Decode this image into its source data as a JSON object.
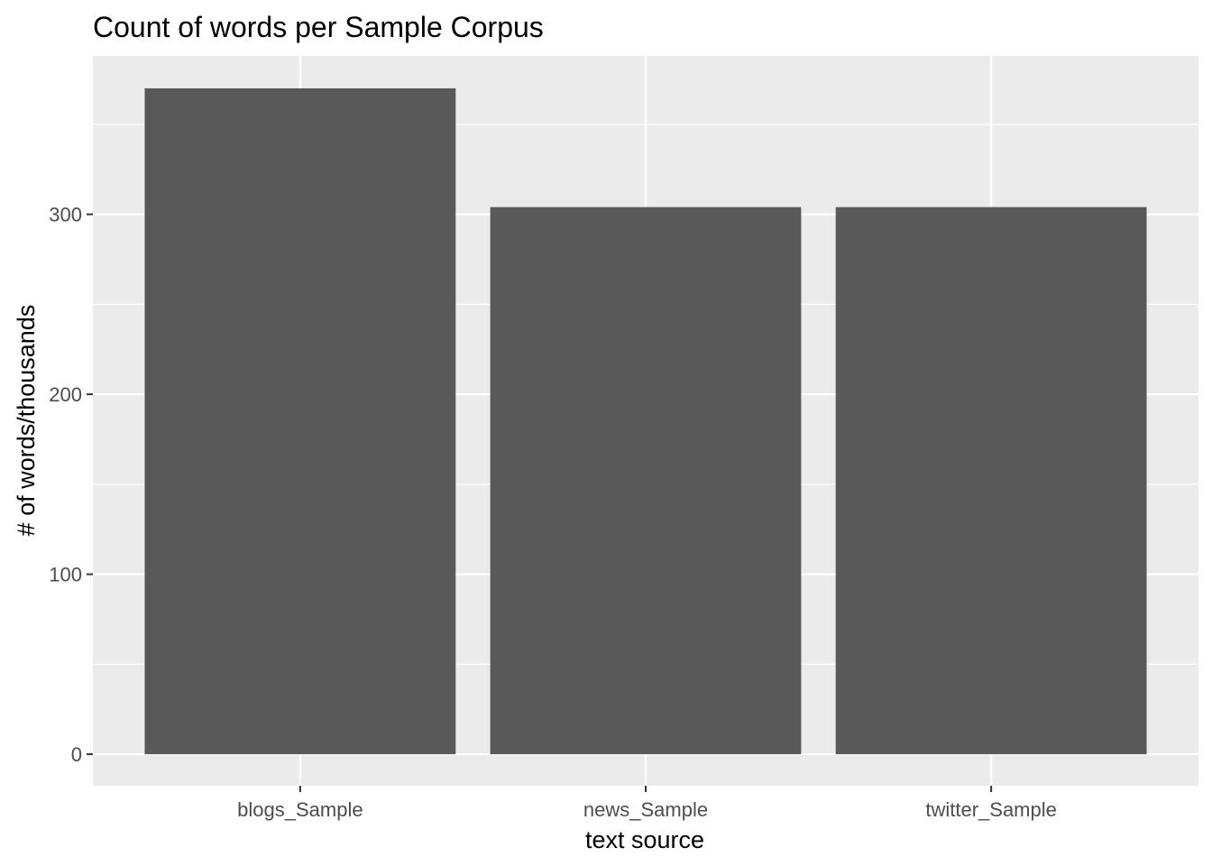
{
  "chart_data": {
    "type": "bar",
    "title": "Count of words per Sample Corpus",
    "xlabel": "text source",
    "ylabel": "# of words/thousands",
    "categories": [
      "blogs_Sample",
      "news_Sample",
      "twitter_Sample"
    ],
    "values": [
      370,
      304,
      304
    ],
    "ylim": [
      -17.5,
      388
    ],
    "yticks": [
      0,
      100,
      200,
      300
    ],
    "ytick_labels": [
      "0",
      "100",
      "200",
      "300"
    ],
    "grid": true,
    "colors": {
      "bar": "#595959",
      "panel": "#ebebeb",
      "grid": "#ffffff",
      "tick": "#333333"
    }
  }
}
